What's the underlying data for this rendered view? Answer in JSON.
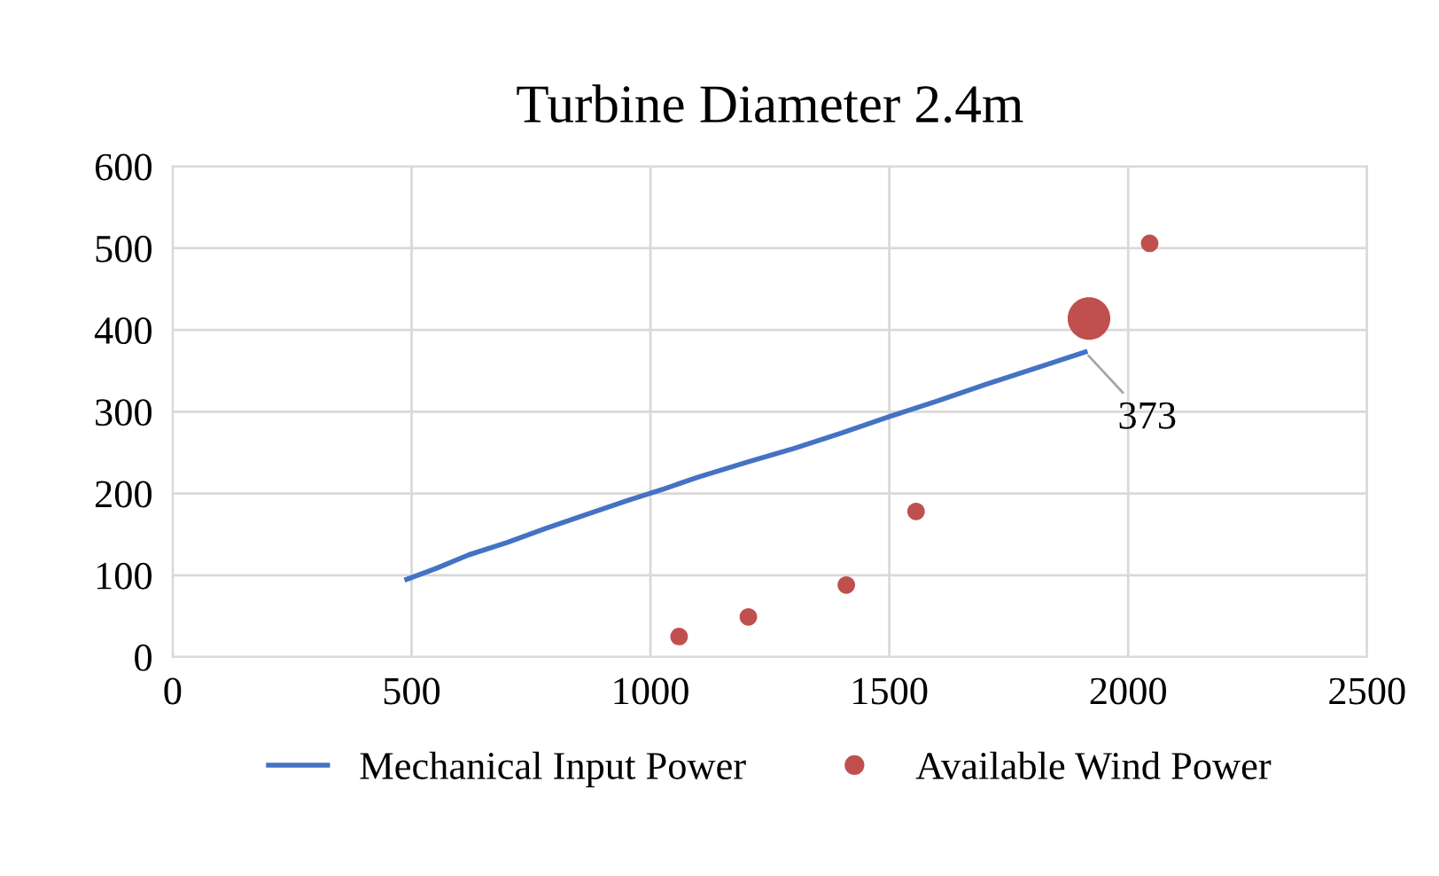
{
  "chart_data": {
    "type": "line",
    "title": "Turbine Diameter 2.4m",
    "series": [
      {
        "name": "Mechanical Input Power",
        "color": "#4472c4",
        "x": [
          490,
          550,
          620,
          700,
          780,
          860,
          950,
          1030,
          1100,
          1200,
          1300,
          1400,
          1500,
          1600,
          1700,
          1800,
          1910
        ],
        "values": [
          95,
          108,
          125,
          140,
          157,
          173,
          191,
          206,
          220,
          238,
          255,
          274,
          294,
          313,
          333,
          352,
          373
        ]
      },
      {
        "name": "Available Wind Power",
        "type": "bubble",
        "color": "#c0504d",
        "x": [
          1060,
          1205,
          1410,
          1556,
          1918,
          2045
        ],
        "values": [
          25,
          49,
          88,
          178,
          414,
          506
        ],
        "sizes": [
          0.17,
          0.17,
          0.17,
          0.17,
          1,
          0.17
        ]
      }
    ],
    "annotations": [
      {
        "text": "373",
        "x": 1910,
        "y": 373
      }
    ],
    "xlim": [
      0,
      2500
    ],
    "xticks": [
      0,
      500,
      1000,
      1500,
      2000,
      2500
    ],
    "ylim": [
      0,
      600
    ],
    "yticks": [
      0,
      100,
      200,
      300,
      400,
      500,
      600
    ],
    "grid": true,
    "legend": "bottom"
  }
}
